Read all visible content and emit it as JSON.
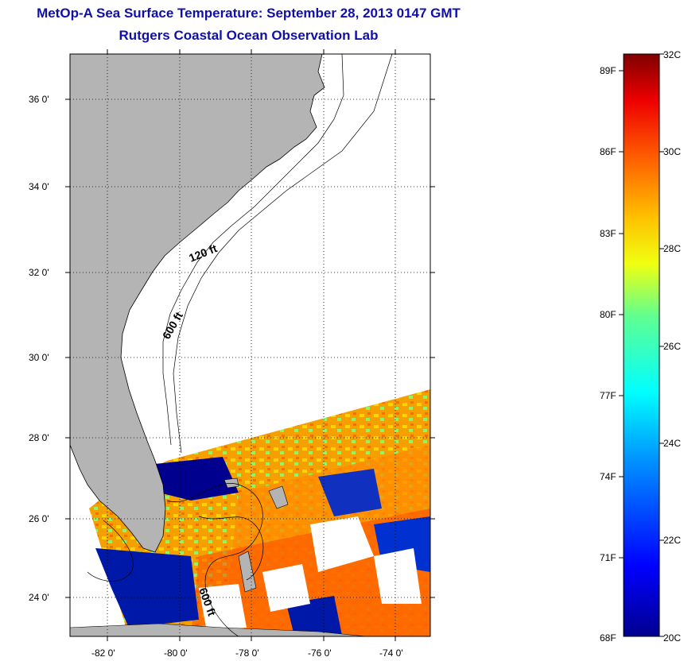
{
  "header": {
    "title": "MetOp-A Sea Surface Temperature:  September 28, 2013 0147 GMT",
    "subtitle": "Rutgers Coastal Ocean Observation Lab"
  },
  "map": {
    "lat_labels": [
      "36 0'",
      "34 0'",
      "32 0'",
      "30 0'",
      "28 0'",
      "26 0'",
      "24 0'"
    ],
    "lon_labels": [
      "-82 0'",
      "-80 0'",
      "-78 0'",
      "-76 0'",
      "-74 0'"
    ],
    "contour_labels": [
      "120 ft",
      "600 ft",
      "600 ft"
    ],
    "colors": {
      "land": "#b4b4b4",
      "ocean": "#ffffff",
      "contour": "#000000"
    }
  },
  "colorbar": {
    "fahrenheit_labels": [
      "89F",
      "86F",
      "83F",
      "80F",
      "77F",
      "74F",
      "71F",
      "68F"
    ],
    "celsius_labels": [
      "32C",
      "30C",
      "28C",
      "26C",
      "24C",
      "22C",
      "20C"
    ],
    "range_c": [
      20,
      32
    ]
  }
}
